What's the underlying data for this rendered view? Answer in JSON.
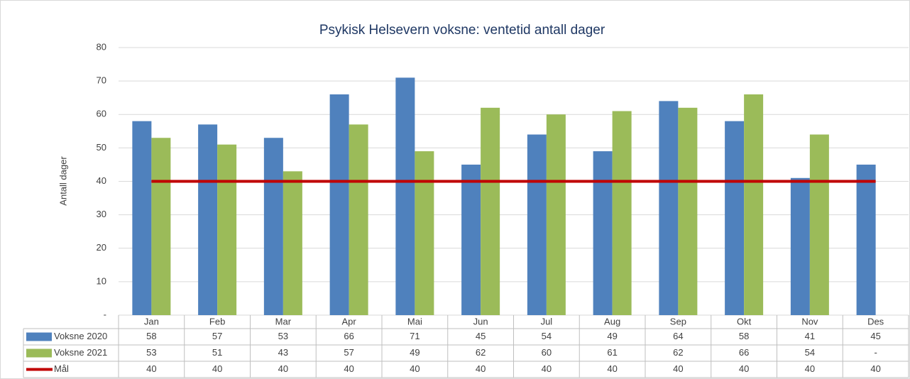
{
  "chart_data": {
    "type": "bar",
    "title": "Psykisk Helsevern voksne: ventetid antall dager",
    "y_label": "Antall dager",
    "categories": [
      "Jan",
      "Feb",
      "Mar",
      "Apr",
      "Mai",
      "Jun",
      "Jul",
      "Aug",
      "Sep",
      "Okt",
      "Nov",
      "Des"
    ],
    "series": [
      {
        "name": "Voksne 2020",
        "color": "#4f81bd",
        "values": [
          58,
          57,
          53,
          66,
          71,
          45,
          54,
          49,
          64,
          58,
          41,
          45
        ]
      },
      {
        "name": "Voksne 2021",
        "color": "#9bbb59",
        "values": [
          53,
          51,
          43,
          57,
          49,
          62,
          60,
          61,
          62,
          66,
          54,
          null
        ],
        "value_labels": [
          "53",
          "51",
          "43",
          "57",
          "49",
          "62",
          "60",
          "61",
          "62",
          "66",
          "54",
          "-"
        ]
      },
      {
        "name": "Mål",
        "color": "#c00000",
        "type": "line",
        "values": [
          40,
          40,
          40,
          40,
          40,
          40,
          40,
          40,
          40,
          40,
          40,
          40
        ]
      }
    ],
    "ylim": [
      0,
      80
    ],
    "yticks": [
      {
        "value": 0,
        "label": "-"
      },
      10,
      20,
      30,
      40,
      50,
      60,
      70,
      80
    ],
    "grid": true,
    "data_table": true
  }
}
